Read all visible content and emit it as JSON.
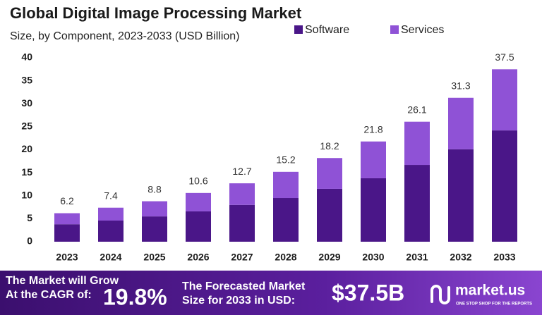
{
  "chart_data": {
    "type": "stacked-bar",
    "title": "Global Digital Image Processing Market",
    "subtitle": "Size, by Component, 2023-2033 (USD Billion)",
    "categories": [
      "2023",
      "2024",
      "2025",
      "2026",
      "2027",
      "2028",
      "2029",
      "2030",
      "2031",
      "2032",
      "2033"
    ],
    "series": [
      {
        "name": "Software",
        "color": "#4a1688",
        "values": [
          3.8,
          4.6,
          5.5,
          6.6,
          8.0,
          9.5,
          11.5,
          13.8,
          16.7,
          20.1,
          24.2
        ]
      },
      {
        "name": "Services",
        "color": "#8f52d6",
        "values": [
          2.4,
          2.8,
          3.3,
          4.0,
          4.7,
          5.7,
          6.7,
          8.0,
          9.4,
          11.2,
          13.3
        ]
      }
    ],
    "totals": [
      6.2,
      7.4,
      8.8,
      10.6,
      12.7,
      15.2,
      18.2,
      21.8,
      26.1,
      31.3,
      37.5
    ],
    "ylim": [
      0,
      40
    ],
    "yticks": [
      0,
      5,
      10,
      15,
      20,
      25,
      30,
      35,
      40
    ],
    "grid": false
  },
  "footer": {
    "cagr_text": [
      "The Market will Grow",
      "At the CAGR of:"
    ],
    "cagr": "19.8%",
    "forecast_text": [
      "The Forecasted Market",
      "Size for 2033 in USD:"
    ],
    "forecast": "$37.5B",
    "brand": "market.us",
    "tagline": "ONE STOP SHOP FOR THE REPORTS"
  }
}
